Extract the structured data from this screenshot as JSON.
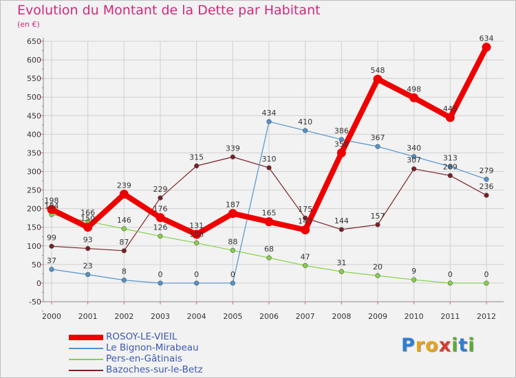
{
  "title": "Evolution du Montant de la Dette par Habitant",
  "subtitle": "(en €)",
  "brand": {
    "letters": [
      {
        "ch": "P",
        "color": "#2f7fd0"
      },
      {
        "ch": "r",
        "color": "#e8a317"
      },
      {
        "ch": "o",
        "color": "#e8a317"
      },
      {
        "ch": "x",
        "color": "#d63a2f"
      },
      {
        "ch": "i",
        "color": "#5aab35"
      },
      {
        "ch": "t",
        "color": "#2f7fd0"
      },
      {
        "ch": "i",
        "color": "#5aab35"
      }
    ]
  },
  "chart_data": {
    "type": "line",
    "title": "Evolution du Montant de la Dette par Habitant",
    "subtitle": "(en €)",
    "x": [
      "2000",
      "2001",
      "2002",
      "2003",
      "2004",
      "2005",
      "2006",
      "2007",
      "2008",
      "2009",
      "2010",
      "2011",
      "2012"
    ],
    "ylim": [
      -50,
      650
    ],
    "yticks": [
      "-50",
      "0",
      "50",
      "100",
      "150",
      "200",
      "250",
      "300",
      "350",
      "400",
      "450",
      "500",
      "550",
      "600",
      "650"
    ],
    "grid": true,
    "legend_position": "bottom-left",
    "series": [
      {
        "name": "ROSOY-LE-VIEIL",
        "color": "#ee0000",
        "values": [
          198,
          150,
          239,
          176,
          131,
          187,
          165,
          143,
          350,
          548,
          498,
          445,
          634
        ],
        "labels": [
          "198",
          "150",
          "239",
          "176",
          "131",
          "187",
          "165",
          "143",
          "350",
          "548",
          "498",
          "445",
          "634"
        ]
      },
      {
        "name": "Le Bignon-Mirabeau",
        "color": "#4f93cd",
        "values": [
          37,
          23,
          8,
          0,
          0,
          0,
          434,
          410,
          386,
          367,
          340,
          313,
          279
        ],
        "labels": [
          "37",
          "23",
          "8",
          "0",
          "0",
          "0",
          "434",
          "410",
          "386",
          "367",
          "340",
          "313",
          "279"
        ]
      },
      {
        "name": "Pers-en-Gâtinais",
        "color": "#84d344",
        "values": [
          184,
          166,
          146,
          126,
          108,
          88,
          68,
          47,
          31,
          20,
          9,
          0,
          0
        ],
        "labels": [
          "184",
          "166",
          "146",
          "126",
          "108",
          "88",
          "68",
          "47",
          "31",
          "20",
          "9",
          "0",
          "0"
        ]
      },
      {
        "name": "Bazoches-sur-le-Betz",
        "color": "#7b1f24",
        "values": [
          99,
          93,
          87,
          229,
          315,
          339,
          310,
          175,
          144,
          157,
          307,
          289,
          236
        ],
        "labels": [
          "99",
          "93",
          "87",
          "229",
          "315",
          "339",
          "310",
          "175",
          "144",
          "157",
          "307",
          "289",
          "236"
        ]
      }
    ]
  }
}
